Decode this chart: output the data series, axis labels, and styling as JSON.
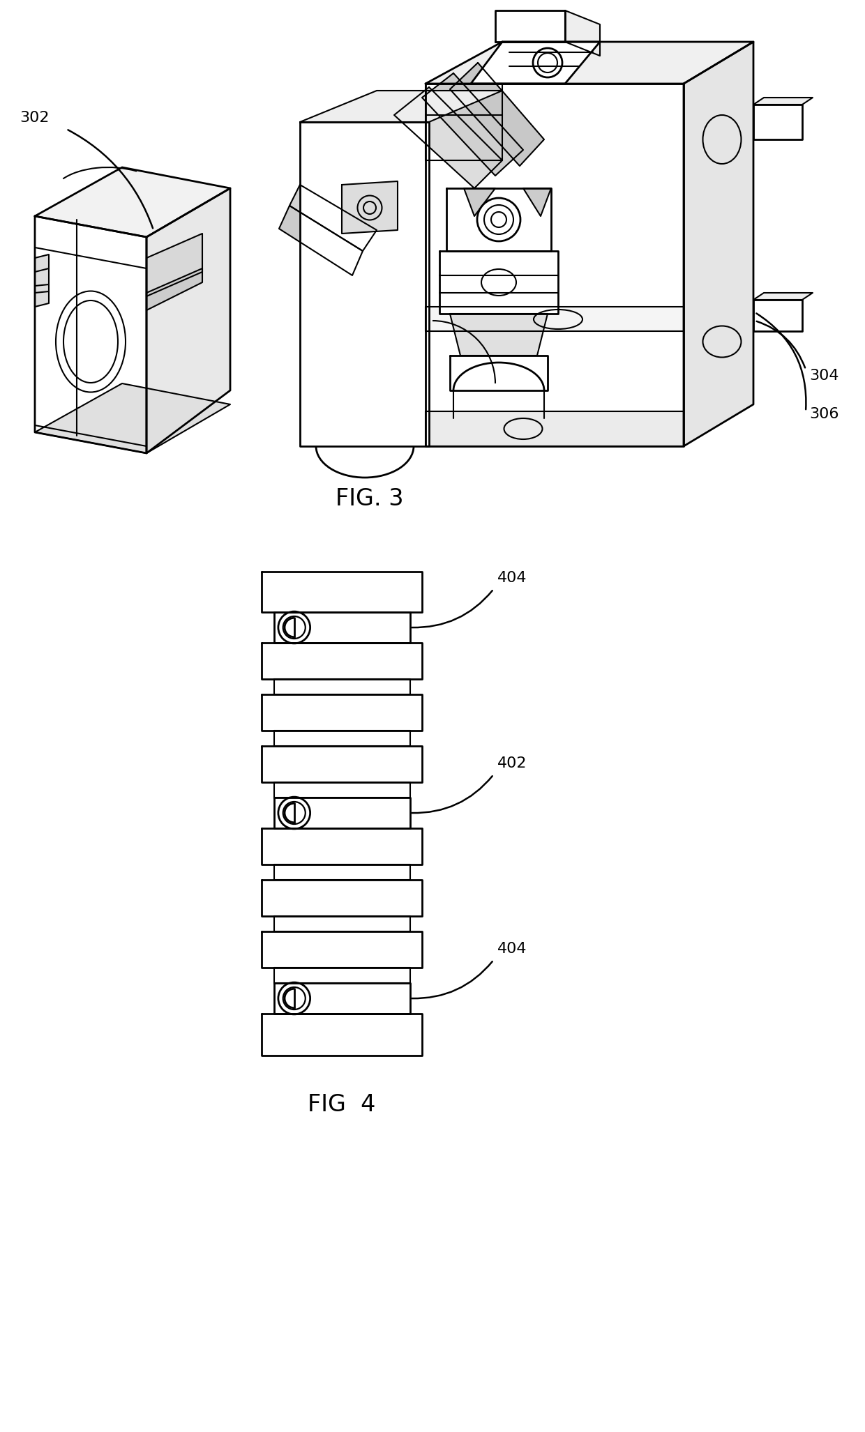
{
  "fig_width": 12.4,
  "fig_height": 20.54,
  "bg_color": "#ffffff",
  "line_color": "#000000",
  "fig3_label": "FIG. 3",
  "fig4_label": "FIG  4",
  "label_302": "302",
  "label_304": "304",
  "label_306": "306",
  "label_402": "402",
  "label_404": "404",
  "font_size_label": 16,
  "font_size_fig": 24,
  "lw_main": 1.5,
  "lw_thick": 2.0
}
